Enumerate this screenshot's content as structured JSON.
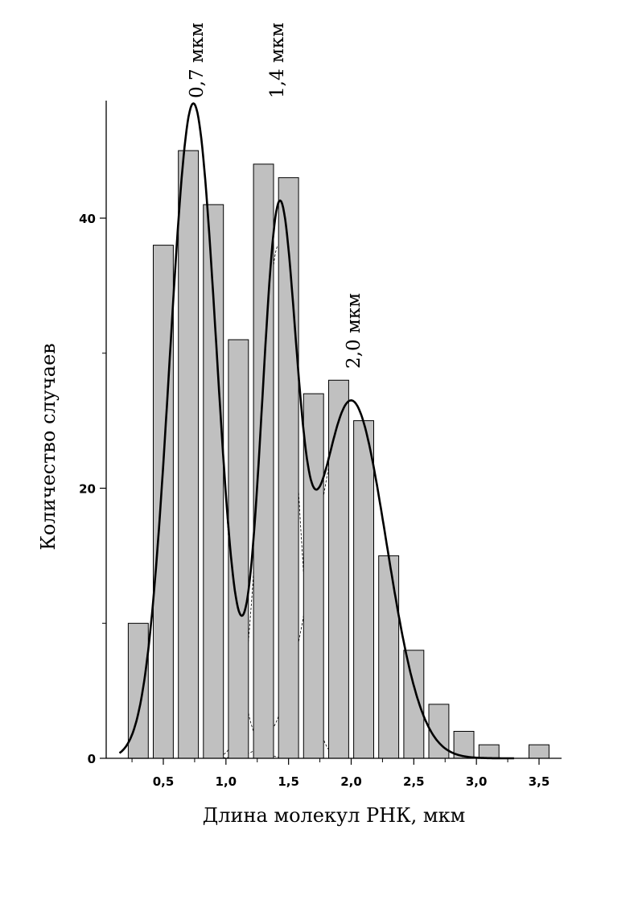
{
  "chart_data": {
    "type": "bar",
    "title": "",
    "xlabel": "Длина молекул РНК, мкм",
    "ylabel": "Количество случаев",
    "xlim": [
      0.0,
      3.75
    ],
    "ylim": [
      0,
      48
    ],
    "x_ticks": [
      {
        "value": 0.5,
        "label": "0,5"
      },
      {
        "value": 1.0,
        "label": "1,0"
      },
      {
        "value": 1.5,
        "label": "1,5"
      },
      {
        "value": 2.0,
        "label": "2,0"
      },
      {
        "value": 2.5,
        "label": "2,5"
      },
      {
        "value": 3.0,
        "label": "3,0"
      },
      {
        "value": 3.5,
        "label": "3,5"
      }
    ],
    "y_ticks": [
      {
        "value": 0,
        "label": "0"
      },
      {
        "value": 20,
        "label": "20"
      },
      {
        "value": 40,
        "label": "40"
      }
    ],
    "bar_width": 0.16,
    "bars": [
      {
        "x": 0.3,
        "value": 10
      },
      {
        "x": 0.5,
        "value": 38
      },
      {
        "x": 0.7,
        "value": 45
      },
      {
        "x": 0.9,
        "value": 41
      },
      {
        "x": 1.1,
        "value": 31
      },
      {
        "x": 1.3,
        "value": 44
      },
      {
        "x": 1.5,
        "value": 43
      },
      {
        "x": 1.7,
        "value": 27
      },
      {
        "x": 1.9,
        "value": 28
      },
      {
        "x": 2.1,
        "value": 25
      },
      {
        "x": 2.3,
        "value": 15
      },
      {
        "x": 2.5,
        "value": 8
      },
      {
        "x": 2.7,
        "value": 4
      },
      {
        "x": 2.9,
        "value": 2
      },
      {
        "x": 3.1,
        "value": 1
      },
      {
        "x": 3.5,
        "value": 1
      }
    ],
    "gaussian_components": [
      {
        "center": 0.74,
        "amplitude": 48.5,
        "sigma": 0.19,
        "label": "0,7 мкм"
      },
      {
        "center": 1.42,
        "amplitude": 38.0,
        "sigma": 0.14,
        "label": "1,4 мкм"
      },
      {
        "center": 2.0,
        "amplitude": 26.5,
        "sigma": 0.28,
        "label": "2,0 мкм"
      }
    ],
    "colors": {
      "bar_fill": "#c0c0c0",
      "bar_stroke": "#000000",
      "fit_line": "#000000",
      "component_line": "#000000"
    }
  }
}
